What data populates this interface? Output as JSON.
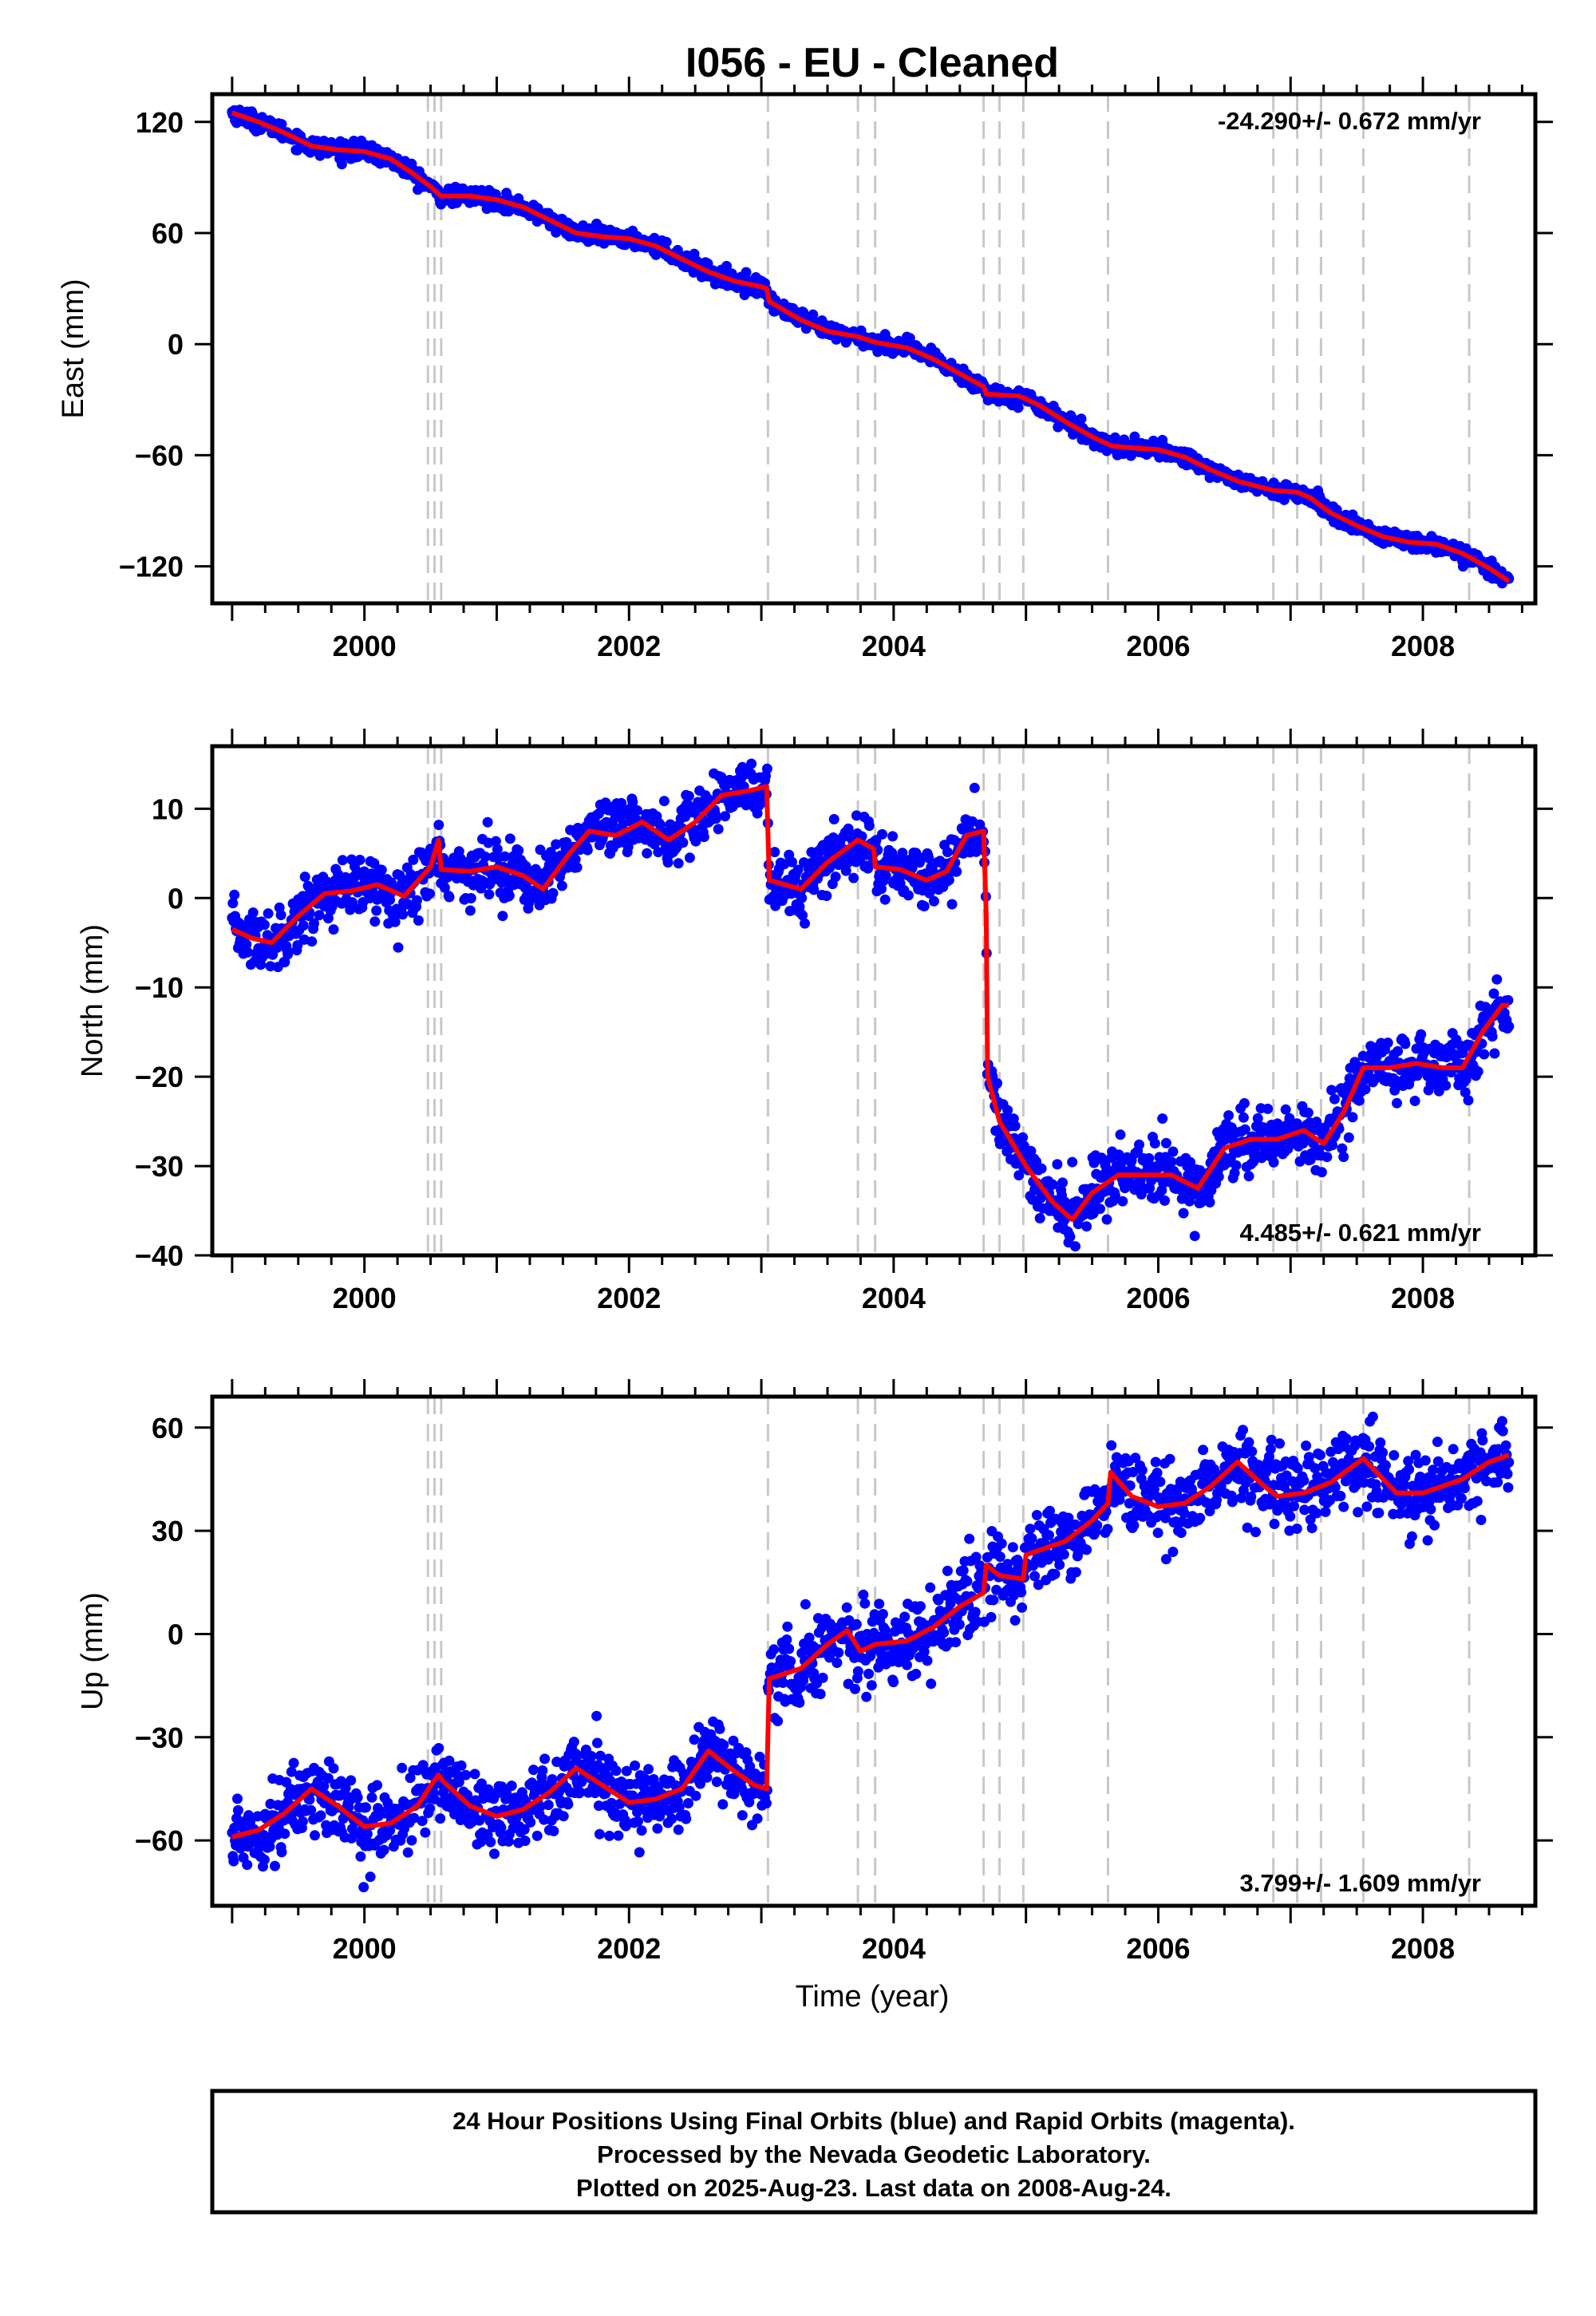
{
  "title": "I056  - EU - Cleaned",
  "xlabel": "Time (year)",
  "footer": {
    "line1": "24 Hour Positions Using Final Orbits (blue) and Rapid Orbits (magenta).",
    "line2": "Processed by the Nevada Geodetic Laboratory.",
    "line3": "Plotted on 2025-Aug-23. Last data on 2008-Aug-24."
  },
  "colors": {
    "points": "#0000ff",
    "model": "#ff0000",
    "events": "#c8c8c8",
    "frame": "#000000"
  },
  "chart_data": [
    {
      "type": "scatter",
      "component": "east",
      "ylabel": "East (mm)",
      "xlim": [
        1998.85,
        2008.85
      ],
      "ylim": [
        -140,
        135
      ],
      "yticks": [
        120,
        60,
        0,
        -60,
        -120
      ],
      "yticklabels": [
        "120",
        "60",
        "0",
        "−60",
        "−120"
      ],
      "xticks": [
        2000,
        2002,
        2004,
        2006,
        2008
      ],
      "xticklabels": [
        "2000",
        "2002",
        "2004",
        "2006",
        "2008"
      ],
      "rate_text": "-24.290+/- 0.672 mm/yr",
      "rate_position": "top-right",
      "event_lines": [
        2000.48,
        2000.53,
        2000.58,
        2003.05,
        2003.73,
        2003.86,
        2004.68,
        2004.8,
        2004.98,
        2005.62,
        2006.87,
        2007.05,
        2007.23,
        2007.55,
        2008.35
      ],
      "model_knots": [
        [
          1999.0,
          125
        ],
        [
          1999.2,
          120
        ],
        [
          1999.4,
          114
        ],
        [
          1999.6,
          107
        ],
        [
          1999.8,
          105
        ],
        [
          2000.0,
          104
        ],
        [
          2000.2,
          100
        ],
        [
          2000.35,
          93
        ],
        [
          2000.5,
          85
        ],
        [
          2000.58,
          80
        ],
        [
          2000.8,
          80
        ],
        [
          2001.0,
          78
        ],
        [
          2001.2,
          74
        ],
        [
          2001.4,
          67
        ],
        [
          2001.6,
          60
        ],
        [
          2001.8,
          58
        ],
        [
          2002.0,
          57
        ],
        [
          2002.2,
          53
        ],
        [
          2002.4,
          46
        ],
        [
          2002.6,
          39
        ],
        [
          2002.8,
          34
        ],
        [
          2003.0,
          31
        ],
        [
          2003.04,
          30
        ],
        [
          2003.06,
          23
        ],
        [
          2003.3,
          13
        ],
        [
          2003.5,
          7
        ],
        [
          2003.73,
          4
        ],
        [
          2003.86,
          1
        ],
        [
          2004.1,
          -2
        ],
        [
          2004.3,
          -8
        ],
        [
          2004.5,
          -16
        ],
        [
          2004.68,
          -23
        ],
        [
          2004.7,
          -27
        ],
        [
          2004.95,
          -28
        ],
        [
          2005.1,
          -33
        ],
        [
          2005.3,
          -42
        ],
        [
          2005.5,
          -50
        ],
        [
          2005.65,
          -55
        ],
        [
          2005.8,
          -56
        ],
        [
          2006.0,
          -57
        ],
        [
          2006.2,
          -61
        ],
        [
          2006.4,
          -68
        ],
        [
          2006.6,
          -74
        ],
        [
          2006.87,
          -79
        ],
        [
          2007.05,
          -80
        ],
        [
          2007.15,
          -83
        ],
        [
          2007.3,
          -91
        ],
        [
          2007.5,
          -98
        ],
        [
          2007.7,
          -104
        ],
        [
          2007.9,
          -107
        ],
        [
          2008.1,
          -108
        ],
        [
          2008.3,
          -113
        ],
        [
          2008.5,
          -121
        ],
        [
          2008.65,
          -128
        ]
      ],
      "scatter_noise": 2.2
    },
    {
      "type": "scatter",
      "component": "north",
      "ylabel": "North (mm)",
      "xlim": [
        1998.85,
        2008.85
      ],
      "ylim": [
        -40,
        17
      ],
      "yticks": [
        10,
        0,
        -10,
        -20,
        -30,
        -40
      ],
      "yticklabels": [
        "10",
        "0",
        "−10",
        "−20",
        "−30",
        "−40"
      ],
      "xticks": [
        2000,
        2002,
        2004,
        2006,
        2008
      ],
      "xticklabels": [
        "2000",
        "2002",
        "2004",
        "2006",
        "2008"
      ],
      "rate_text": "4.485+/- 0.621 mm/yr",
      "rate_position": "bottom-right",
      "event_lines": [
        2000.48,
        2000.53,
        2000.58,
        2003.05,
        2003.73,
        2003.86,
        2004.68,
        2004.8,
        2004.98,
        2005.62,
        2006.87,
        2007.05,
        2007.23,
        2007.55,
        2008.35
      ],
      "model_knots": [
        [
          1999.0,
          -3.5
        ],
        [
          1999.15,
          -4.5
        ],
        [
          1999.3,
          -5
        ],
        [
          1999.5,
          -2
        ],
        [
          1999.7,
          0.5
        ],
        [
          1999.9,
          0.8
        ],
        [
          2000.1,
          1.5
        ],
        [
          2000.3,
          0.2
        ],
        [
          2000.5,
          3.5
        ],
        [
          2000.56,
          6.5
        ],
        [
          2000.58,
          3.2
        ],
        [
          2000.8,
          3
        ],
        [
          2001.0,
          3.5
        ],
        [
          2001.2,
          2.5
        ],
        [
          2001.35,
          1
        ],
        [
          2001.55,
          5
        ],
        [
          2001.7,
          7.5
        ],
        [
          2001.9,
          7
        ],
        [
          2002.1,
          8.5
        ],
        [
          2002.3,
          6.5
        ],
        [
          2002.5,
          8.5
        ],
        [
          2002.7,
          11.5
        ],
        [
          2002.9,
          12
        ],
        [
          2003.04,
          12.5
        ],
        [
          2003.06,
          2
        ],
        [
          2003.3,
          1
        ],
        [
          2003.5,
          4
        ],
        [
          2003.73,
          6.5
        ],
        [
          2003.85,
          5.5
        ],
        [
          2003.86,
          3.5
        ],
        [
          2004.05,
          3.2
        ],
        [
          2004.25,
          2
        ],
        [
          2004.4,
          3
        ],
        [
          2004.55,
          7
        ],
        [
          2004.68,
          7.5
        ],
        [
          2004.7,
          -2
        ],
        [
          2004.71,
          -20
        ],
        [
          2004.8,
          -25
        ],
        [
          2005.0,
          -30
        ],
        [
          2005.2,
          -34
        ],
        [
          2005.35,
          -36
        ],
        [
          2005.5,
          -33
        ],
        [
          2005.7,
          -31
        ],
        [
          2005.9,
          -31
        ],
        [
          2006.1,
          -31
        ],
        [
          2006.3,
          -32.5
        ],
        [
          2006.5,
          -28
        ],
        [
          2006.7,
          -27
        ],
        [
          2006.9,
          -27
        ],
        [
          2007.1,
          -26
        ],
        [
          2007.25,
          -27.5
        ],
        [
          2007.4,
          -24
        ],
        [
          2007.55,
          -19
        ],
        [
          2007.75,
          -19
        ],
        [
          2007.95,
          -18.5
        ],
        [
          2008.15,
          -19
        ],
        [
          2008.3,
          -19
        ],
        [
          2008.45,
          -15
        ],
        [
          2008.6,
          -12
        ],
        [
          2008.65,
          -12
        ]
      ],
      "scatter_noise": 1.7
    },
    {
      "type": "scatter",
      "component": "up",
      "ylabel": "Up (mm)",
      "xlim": [
        1998.85,
        2008.85
      ],
      "ylim": [
        -79,
        69
      ],
      "yticks": [
        60,
        30,
        0,
        -30,
        -60
      ],
      "yticklabels": [
        "60",
        "30",
        "0",
        "−30",
        "−60"
      ],
      "xticks": [
        2000,
        2002,
        2004,
        2006,
        2008
      ],
      "xticklabels": [
        "2000",
        "2002",
        "2004",
        "2006",
        "2008"
      ],
      "rate_text": "3.799+/- 1.609 mm/yr",
      "rate_position": "bottom-right",
      "event_lines": [
        2000.48,
        2000.53,
        2000.58,
        2003.05,
        2003.73,
        2003.86,
        2004.68,
        2004.8,
        2004.98,
        2005.62,
        2006.87,
        2007.05,
        2007.23,
        2007.55,
        2008.35
      ],
      "model_knots": [
        [
          1999.0,
          -59
        ],
        [
          1999.2,
          -57
        ],
        [
          1999.4,
          -52
        ],
        [
          1999.6,
          -45
        ],
        [
          1999.8,
          -50
        ],
        [
          2000.0,
          -56
        ],
        [
          2000.2,
          -55
        ],
        [
          2000.4,
          -50
        ],
        [
          2000.52,
          -43
        ],
        [
          2000.56,
          -41
        ],
        [
          2000.6,
          -43
        ],
        [
          2000.8,
          -50
        ],
        [
          2001.0,
          -53
        ],
        [
          2001.2,
          -51
        ],
        [
          2001.4,
          -46
        ],
        [
          2001.6,
          -39
        ],
        [
          2001.8,
          -44
        ],
        [
          2002.0,
          -49
        ],
        [
          2002.2,
          -48
        ],
        [
          2002.4,
          -45
        ],
        [
          2002.6,
          -34
        ],
        [
          2002.8,
          -40
        ],
        [
          2002.95,
          -44
        ],
        [
          2003.04,
          -45
        ],
        [
          2003.06,
          -13
        ],
        [
          2003.3,
          -10
        ],
        [
          2003.5,
          -3
        ],
        [
          2003.65,
          1
        ],
        [
          2003.75,
          -5
        ],
        [
          2003.86,
          -3
        ],
        [
          2004.1,
          -2
        ],
        [
          2004.3,
          2
        ],
        [
          2004.5,
          8
        ],
        [
          2004.68,
          12
        ],
        [
          2004.7,
          20
        ],
        [
          2004.8,
          17
        ],
        [
          2004.98,
          16
        ],
        [
          2005.0,
          23
        ],
        [
          2005.3,
          27
        ],
        [
          2005.5,
          33
        ],
        [
          2005.62,
          38
        ],
        [
          2005.64,
          47
        ],
        [
          2005.8,
          40
        ],
        [
          2006.0,
          37
        ],
        [
          2006.2,
          38
        ],
        [
          2006.4,
          43
        ],
        [
          2006.6,
          50
        ],
        [
          2006.8,
          43
        ],
        [
          2006.9,
          40
        ],
        [
          2007.1,
          41
        ],
        [
          2007.3,
          44
        ],
        [
          2007.55,
          51
        ],
        [
          2007.8,
          41
        ],
        [
          2008.0,
          41
        ],
        [
          2008.3,
          45
        ],
        [
          2008.5,
          50
        ],
        [
          2008.65,
          52
        ]
      ],
      "scatter_noise": 5.5
    }
  ]
}
